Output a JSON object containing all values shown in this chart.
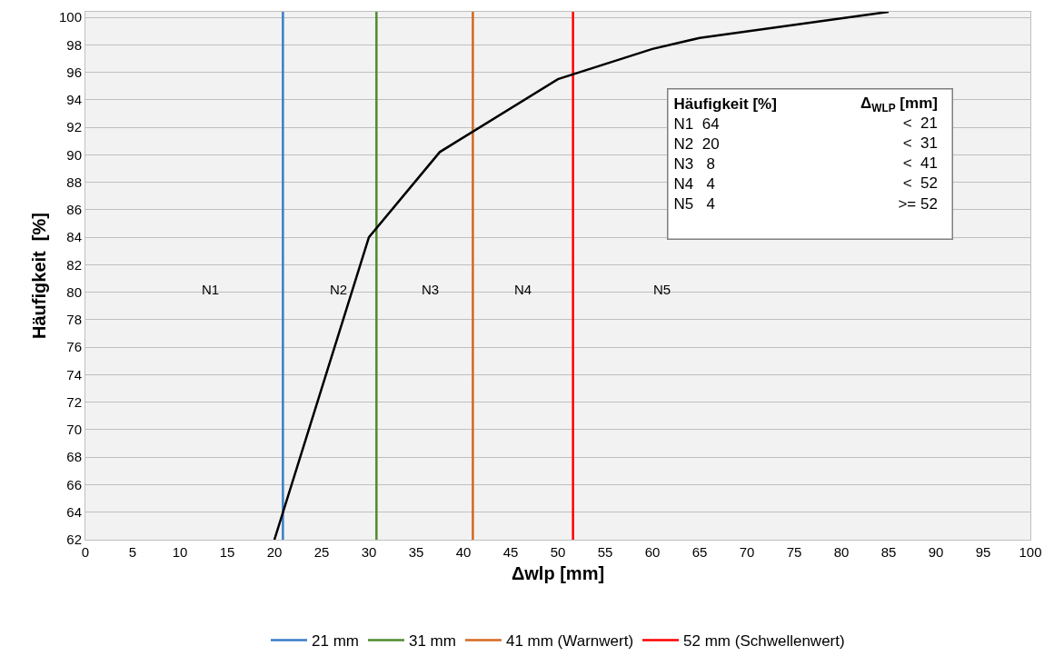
{
  "chart_data": {
    "type": "line",
    "xlabel": "Δwlp [mm]",
    "ylabel": "Häufigkeit  [%]",
    "xlim": [
      0,
      100
    ],
    "xticks": [
      0,
      5,
      10,
      15,
      20,
      25,
      30,
      35,
      40,
      45,
      50,
      55,
      60,
      65,
      70,
      75,
      80,
      85,
      90,
      95,
      100
    ],
    "ylim": [
      62,
      100.4
    ],
    "yticks": [
      62,
      64,
      66,
      68,
      70,
      72,
      74,
      76,
      78,
      80,
      82,
      84,
      86,
      88,
      90,
      92,
      94,
      96,
      98,
      100
    ],
    "grid": "y",
    "legend": "bottom",
    "marker": "none",
    "line_style": "solid",
    "series": [
      {
        "color": "#000000",
        "x": [
          20,
          30,
          37.5,
          50,
          60,
          65,
          85
        ],
        "values": [
          62,
          84,
          90.2,
          95.5,
          97.7,
          98.5,
          100.4
        ]
      }
    ],
    "ref_lines": [
      {
        "axis": "x",
        "value": 20.9,
        "label": "21 mm",
        "color": "#3a7dc9"
      },
      {
        "axis": "x",
        "value": 30.8,
        "label": "31 mm",
        "color": "#4f8a2e"
      },
      {
        "axis": "x",
        "value": 41,
        "label": "41 mm (Warnwert)",
        "color": "#d4681f"
      },
      {
        "axis": "x",
        "value": 51.6,
        "label": "52 mm (Schwellenwert)",
        "color": "#ff0000"
      }
    ],
    "annotations": [
      "N1",
      "N2",
      "N3",
      "N4",
      "N5",
      "Häufigkeit [%]",
      "Δ$_{WLP}$ [mm]",
      "N1  64",
      "<  21",
      "N2  20",
      "<  31",
      "N3   8",
      "<  41",
      "N4   4",
      "<  52",
      "N5   4",
      ">= 52"
    ]
  }
}
